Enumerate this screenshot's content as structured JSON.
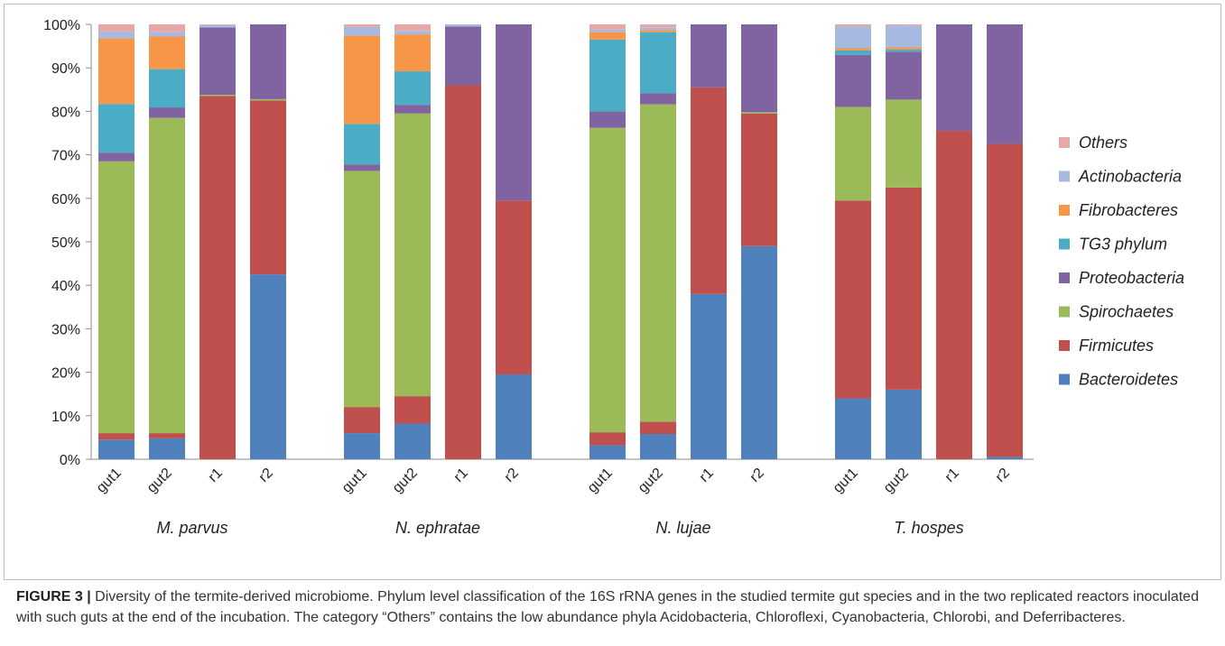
{
  "chart_data": {
    "type": "bar",
    "stacked": true,
    "yticks": [
      "0%",
      "10%",
      "20%",
      "30%",
      "40%",
      "50%",
      "60%",
      "70%",
      "80%",
      "90%",
      "100%"
    ],
    "ylim": [
      0,
      100
    ],
    "groups": [
      {
        "name": "M. parvus",
        "samples": [
          "gut1",
          "gut2",
          "r1",
          "r2"
        ]
      },
      {
        "name": "N. ephratae",
        "samples": [
          "gut1",
          "gut2",
          "r1",
          "r2"
        ]
      },
      {
        "name": "N. lujae",
        "samples": [
          "gut1",
          "gut2",
          "r1",
          "r2"
        ]
      },
      {
        "name": "T. hospes",
        "samples": [
          "gut1",
          "gut2",
          "r1",
          "r2"
        ]
      }
    ],
    "series": [
      {
        "name": "Bacteroidetes",
        "color": "#4f81bd",
        "values": [
          4.5,
          4.8,
          0,
          42.5,
          6,
          8.2,
          0,
          19.5,
          3.2,
          5.8,
          38,
          49,
          14,
          16,
          0,
          0.5
        ]
      },
      {
        "name": "Firmicutes",
        "color": "#c0504d",
        "values": [
          1.5,
          1.2,
          83.5,
          40,
          6,
          6.3,
          86,
          40,
          3,
          2.8,
          47.5,
          30.5,
          45.5,
          46.5,
          75.5,
          72
        ]
      },
      {
        "name": "Spirochaetes",
        "color": "#9bbb59",
        "values": [
          62.5,
          72.5,
          0.3,
          0.3,
          54.3,
          65,
          0,
          0,
          70,
          73,
          0,
          0.3,
          21.5,
          20.2,
          0,
          0
        ]
      },
      {
        "name": "Proteobacteria",
        "color": "#8064a2",
        "values": [
          2,
          2.4,
          15.5,
          17.2,
          1.5,
          2,
          13.5,
          40.5,
          3.8,
          2.6,
          14.5,
          20.2,
          12,
          11,
          24.5,
          27.5
        ]
      },
      {
        "name": "TG3 phylum",
        "color": "#4bacc6",
        "values": [
          11.2,
          8.8,
          0,
          0,
          9.3,
          7.7,
          0,
          0,
          16.5,
          14,
          0,
          0,
          1,
          0.5,
          0,
          0
        ]
      },
      {
        "name": "Fibrobacteres",
        "color": "#f79646",
        "values": [
          15.1,
          7.5,
          0,
          0,
          20.3,
          8.5,
          0,
          0,
          1.7,
          0.5,
          0,
          0,
          0.5,
          0.5,
          0,
          0
        ]
      },
      {
        "name": "Actinobacteria",
        "color": "#a5b9e1",
        "values": [
          1.5,
          1,
          0.5,
          0,
          2,
          0.8,
          0.5,
          0,
          0.6,
          0.5,
          0,
          0,
          5,
          5,
          0,
          0
        ]
      },
      {
        "name": "Others",
        "color": "#e6a9a8",
        "values": [
          1.7,
          1.8,
          0.2,
          0,
          0.6,
          1.5,
          0,
          0,
          1.2,
          0.8,
          0,
          0,
          0.5,
          0.3,
          0,
          0
        ]
      }
    ],
    "legend_position": "right",
    "grid": false
  },
  "caption": {
    "label": "FIGURE 3 |",
    "text": " Diversity of the termite-derived microbiome. Phylum level classification of the 16S rRNA genes in the studied termite gut species and in the two replicated reactors inoculated with such guts at the end of the incubation. The category “Others” contains the low abundance phyla Acidobacteria, Chloroflexi, Cyanobacteria, Chlorobi, and Deferribacteres."
  }
}
